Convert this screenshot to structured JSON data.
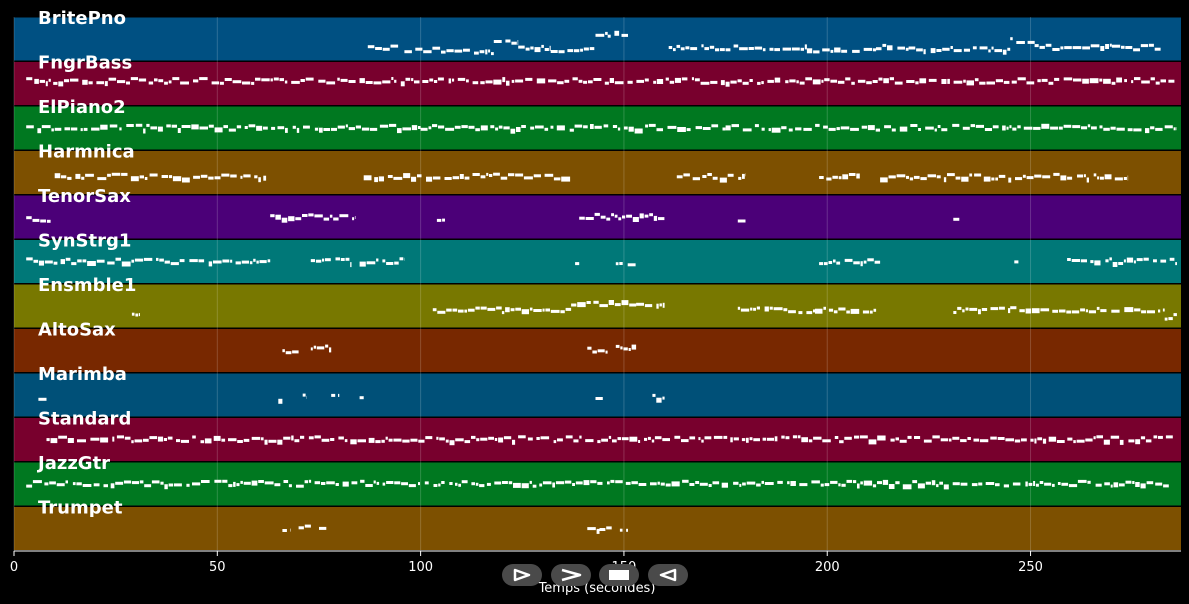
{
  "chart_data": {
    "type": "piano-roll",
    "xlabel": "Temps (secondes)",
    "xlim": [
      0,
      287
    ],
    "xticks": [
      0,
      50,
      100,
      150,
      200,
      250
    ],
    "tracks": [
      {
        "name": "BritePno",
        "color": "#005082",
        "segments": [
          [
            87,
            95,
            0.3
          ],
          [
            96,
            105,
            0.25
          ],
          [
            105,
            118,
            0.2
          ],
          [
            118,
            124,
            0.45
          ],
          [
            124,
            132,
            0.3
          ],
          [
            132,
            143,
            0.25
          ],
          [
            143,
            146,
            0.6
          ],
          [
            146,
            151,
            0.6
          ],
          [
            161,
            175,
            0.3
          ],
          [
            175,
            195,
            0.3
          ],
          [
            195,
            212,
            0.25
          ],
          [
            212,
            220,
            0.3
          ],
          [
            220,
            245,
            0.25
          ],
          [
            245,
            251,
            0.45
          ],
          [
            251,
            270,
            0.3
          ],
          [
            270,
            282,
            0.3
          ]
        ]
      },
      {
        "name": "FngrBass",
        "color": "#78002d",
        "segments": [
          [
            3,
            286,
            0.55
          ]
        ]
      },
      {
        "name": "ElPiano2",
        "color": "#007820",
        "segments": [
          [
            3,
            75,
            0.5
          ],
          [
            75,
            100,
            0.5
          ],
          [
            100,
            145,
            0.5
          ],
          [
            145,
            175,
            0.5
          ],
          [
            175,
            286,
            0.5
          ]
        ]
      },
      {
        "name": "Harmnica",
        "color": "#7d5000",
        "segments": [
          [
            10,
            62,
            0.4
          ],
          [
            86,
            137,
            0.4
          ],
          [
            163,
            180,
            0.4
          ],
          [
            198,
            208,
            0.4
          ],
          [
            213,
            274,
            0.4
          ]
        ]
      },
      {
        "name": "TenorSax",
        "color": "#4b0078",
        "segments": [
          [
            3,
            9,
            0.45
          ],
          [
            63,
            84,
            0.5
          ],
          [
            104,
            106,
            0.45
          ],
          [
            139,
            160,
            0.5
          ],
          [
            178,
            180,
            0.45
          ],
          [
            231,
            233,
            0.45
          ]
        ]
      },
      {
        "name": "SynStrg1",
        "color": "#007878",
        "segments": [
          [
            3,
            63,
            0.5
          ],
          [
            73,
            83,
            0.5
          ],
          [
            85,
            96,
            0.5
          ],
          [
            138,
            139,
            0.5
          ],
          [
            148,
            153,
            0.45
          ],
          [
            198,
            213,
            0.5
          ],
          [
            246,
            247,
            0.5
          ],
          [
            259,
            286,
            0.5
          ]
        ]
      },
      {
        "name": "Ensmble1",
        "color": "#787800",
        "segments": [
          [
            29,
            31,
            0.3
          ],
          [
            103,
            120,
            0.4
          ],
          [
            120,
            137,
            0.4
          ],
          [
            137,
            153,
            0.55
          ],
          [
            153,
            160,
            0.55
          ],
          [
            178,
            197,
            0.4
          ],
          [
            197,
            212,
            0.4
          ],
          [
            231,
            245,
            0.4
          ],
          [
            245,
            283,
            0.4
          ],
          [
            283,
            286,
            0.25
          ]
        ]
      },
      {
        "name": "AltoSax",
        "color": "#782800",
        "segments": [
          [
            66,
            70,
            0.5
          ],
          [
            73,
            78,
            0.55
          ],
          [
            141,
            146,
            0.5
          ],
          [
            148,
            153,
            0.55
          ]
        ]
      },
      {
        "name": "Marimba",
        "color": "#005078",
        "segments": [
          [
            6,
            8,
            0.45
          ],
          [
            65,
            66,
            0.4
          ],
          [
            71,
            72,
            0.45
          ],
          [
            78,
            80,
            0.45
          ],
          [
            85,
            86,
            0.45
          ],
          [
            143,
            145,
            0.45
          ],
          [
            157,
            160,
            0.45
          ]
        ]
      },
      {
        "name": "Standard",
        "color": "#78002d",
        "segments": [
          [
            8,
            285,
            0.5
          ]
        ]
      },
      {
        "name": "JazzGtr",
        "color": "#007820",
        "segments": [
          [
            3,
            284,
            0.5
          ]
        ]
      },
      {
        "name": "Trumpet",
        "color": "#7d5000",
        "segments": [
          [
            66,
            68,
            0.5
          ],
          [
            70,
            73,
            0.5
          ],
          [
            75,
            77,
            0.5
          ],
          [
            141,
            144,
            0.5
          ],
          [
            144,
            147,
            0.5
          ],
          [
            149,
            151,
            0.5
          ]
        ]
      }
    ],
    "grid": true
  },
  "controls": {
    "buttons": [
      {
        "name": "play-button",
        "icon": "play-outline-icon"
      },
      {
        "name": "forward-button",
        "icon": "chevron-right-icon"
      },
      {
        "name": "stop-button",
        "icon": "stop-icon"
      },
      {
        "name": "back-button",
        "icon": "play-left-icon"
      }
    ]
  }
}
